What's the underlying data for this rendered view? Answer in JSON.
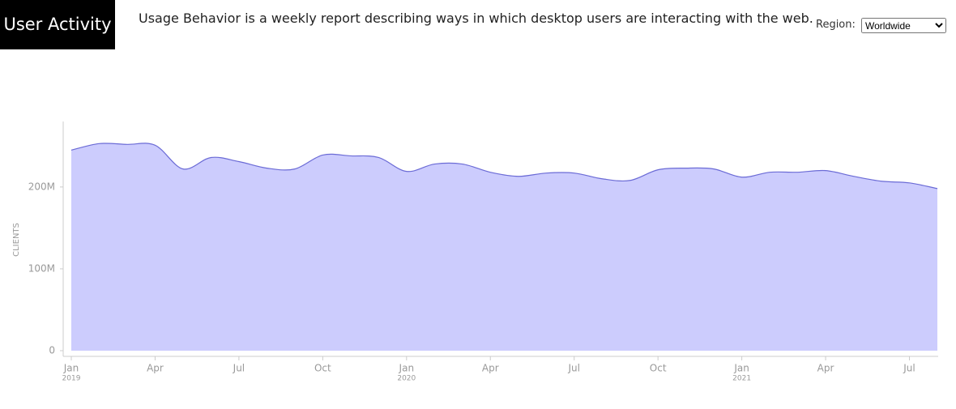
{
  "header": {
    "title": "User Activity",
    "description": "Usage Behavior is a weekly report describing ways in which desktop users are interacting with the web.",
    "region_label": "Region:",
    "region_value": "Worldwide"
  },
  "chart_data": {
    "type": "area",
    "ylabel": "CLIENTS",
    "color": "#ccccfd",
    "line_color": "#6b6bd6",
    "x": [
      "2019-01",
      "2019-02",
      "2019-03",
      "2019-04",
      "2019-05",
      "2019-06",
      "2019-07",
      "2019-08",
      "2019-09",
      "2019-10",
      "2019-11",
      "2019-12",
      "2020-01",
      "2020-02",
      "2020-03",
      "2020-04",
      "2020-05",
      "2020-06",
      "2020-07",
      "2020-08",
      "2020-09",
      "2020-10",
      "2020-11",
      "2020-12",
      "2021-01",
      "2021-02",
      "2021-03",
      "2021-04",
      "2021-05",
      "2021-06",
      "2021-07",
      "2021-08"
    ],
    "values": [
      245000000,
      253000000,
      252000000,
      251000000,
      222000000,
      236000000,
      231000000,
      223000000,
      222000000,
      239000000,
      238000000,
      236000000,
      219000000,
      228000000,
      228000000,
      218000000,
      213000000,
      217000000,
      217000000,
      210000000,
      208000000,
      221000000,
      223000000,
      222000000,
      212000000,
      218000000,
      218000000,
      220000000,
      213000000,
      207000000,
      205000000,
      198000000
    ],
    "xlim": [
      "2019-01",
      "2021-08"
    ],
    "ylim": [
      0,
      280000000
    ],
    "yticks": [
      0,
      {
        "value": 100000000,
        "label": "100M"
      },
      {
        "value": 200000000,
        "label": "200M"
      }
    ],
    "xticks": [
      {
        "value": "2019-01",
        "label": "Jan"
      },
      {
        "value": "2019-04",
        "label": "Apr"
      },
      {
        "value": "2019-07",
        "label": "Jul"
      },
      {
        "value": "2019-10",
        "label": "Oct"
      },
      {
        "value": "2020-01",
        "label": "Jan"
      },
      {
        "value": "2020-04",
        "label": "Apr"
      },
      {
        "value": "2020-07",
        "label": "Jul"
      },
      {
        "value": "2020-10",
        "label": "Oct"
      },
      {
        "value": "2021-01",
        "label": "Jan"
      },
      {
        "value": "2021-04",
        "label": "Apr"
      },
      {
        "value": "2021-07",
        "label": "Jul"
      }
    ],
    "xtick_years": [
      {
        "value": "2019-01",
        "label": "2019"
      },
      {
        "value": "2020-01",
        "label": "2020"
      },
      {
        "value": "2021-01",
        "label": "2021"
      }
    ]
  }
}
